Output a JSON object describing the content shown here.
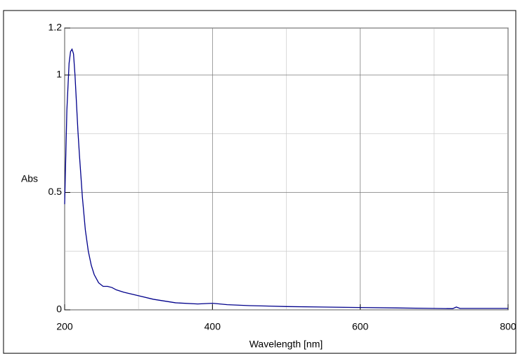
{
  "chart_data": {
    "type": "line",
    "x_label": "Wavelength [nm]",
    "y_label": "Abs",
    "x": [
      200,
      203,
      206,
      208,
      210,
      212,
      214,
      216,
      218,
      220,
      224,
      228,
      232,
      236,
      240,
      246,
      252,
      258,
      264,
      270,
      280,
      300,
      320,
      350,
      380,
      400,
      420,
      450,
      500,
      550,
      600,
      650,
      700,
      725,
      730,
      735,
      760,
      800
    ],
    "series": [
      {
        "color": "#00008b",
        "values": [
          0.45,
          0.85,
          1.05,
          1.1,
          1.11,
          1.09,
          1.0,
          0.88,
          0.76,
          0.66,
          0.48,
          0.34,
          0.25,
          0.19,
          0.15,
          0.115,
          0.1,
          0.1,
          0.095,
          0.085,
          0.075,
          0.06,
          0.045,
          0.03,
          0.025,
          0.028,
          0.022,
          0.018,
          0.014,
          0.012,
          0.01,
          0.008,
          0.006,
          0.005,
          0.012,
          0.006,
          0.006,
          0.006
        ]
      }
    ],
    "xlim": [
      200,
      800
    ],
    "xticks": [
      200,
      400,
      600,
      800
    ],
    "xminor": [
      300,
      500,
      700
    ],
    "ylim": [
      0,
      1.2
    ],
    "yticks": [
      0,
      0.5,
      1,
      1.2
    ],
    "yminor": [
      0.25,
      0.75
    ],
    "grid": true
  }
}
